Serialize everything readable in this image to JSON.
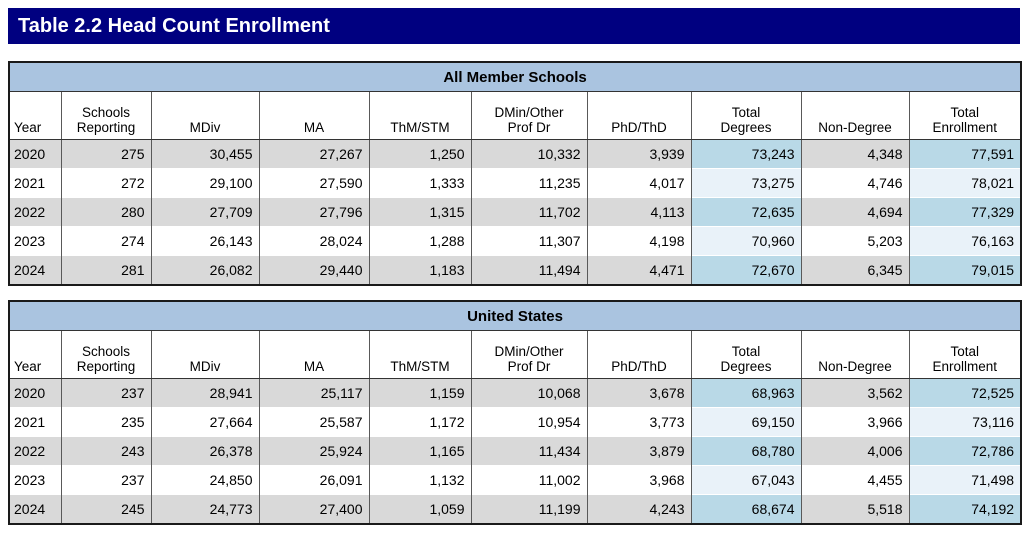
{
  "page_title": "Table 2.2 Head Count Enrollment",
  "column_headers": [
    "Year",
    "Schools\nReporting",
    "MDiv",
    "MA",
    "ThM/STM",
    "DMin/Other\nProf Dr",
    "PhD/ThD",
    "Total\nDegrees",
    "Non-Degree",
    "Total\nEnrollment"
  ],
  "highlight_columns": [
    7,
    9
  ],
  "tables": [
    {
      "section_title": "All Member Schools",
      "rows": [
        [
          "2020",
          "275",
          "30,455",
          "27,267",
          "1,250",
          "10,332",
          "3,939",
          "73,243",
          "4,348",
          "77,591"
        ],
        [
          "2021",
          "272",
          "29,100",
          "27,590",
          "1,333",
          "11,235",
          "4,017",
          "73,275",
          "4,746",
          "78,021"
        ],
        [
          "2022",
          "280",
          "27,709",
          "27,796",
          "1,315",
          "11,702",
          "4,113",
          "72,635",
          "4,694",
          "77,329"
        ],
        [
          "2023",
          "274",
          "26,143",
          "28,024",
          "1,288",
          "11,307",
          "4,198",
          "70,960",
          "5,203",
          "76,163"
        ],
        [
          "2024",
          "281",
          "26,082",
          "29,440",
          "1,183",
          "11,494",
          "4,471",
          "72,670",
          "6,345",
          "79,015"
        ]
      ]
    },
    {
      "section_title": "United States",
      "rows": [
        [
          "2020",
          "237",
          "28,941",
          "25,117",
          "1,159",
          "10,068",
          "3,678",
          "68,963",
          "3,562",
          "72,525"
        ],
        [
          "2021",
          "235",
          "27,664",
          "25,587",
          "1,172",
          "10,954",
          "3,773",
          "69,150",
          "3,966",
          "73,116"
        ],
        [
          "2022",
          "243",
          "26,378",
          "25,924",
          "1,165",
          "11,434",
          "3,879",
          "68,780",
          "4,006",
          "72,786"
        ],
        [
          "2023",
          "237",
          "24,850",
          "26,091",
          "1,132",
          "11,002",
          "3,968",
          "67,043",
          "4,455",
          "71,498"
        ],
        [
          "2024",
          "245",
          "24,773",
          "27,400",
          "1,059",
          "11,199",
          "4,243",
          "68,674",
          "5,518",
          "74,192"
        ]
      ]
    }
  ],
  "colors": {
    "title_bar_bg": "#000080",
    "title_text": "#ffffff",
    "section_band_bg": "#aac4e0",
    "row_gray": "#d9d9d9",
    "row_white": "#ffffff",
    "highlight_on_gray": "#b9d9e7",
    "highlight_on_white": "#e9f2f9",
    "outer_border": "#1a1a1a",
    "cell_border": "#595959"
  }
}
